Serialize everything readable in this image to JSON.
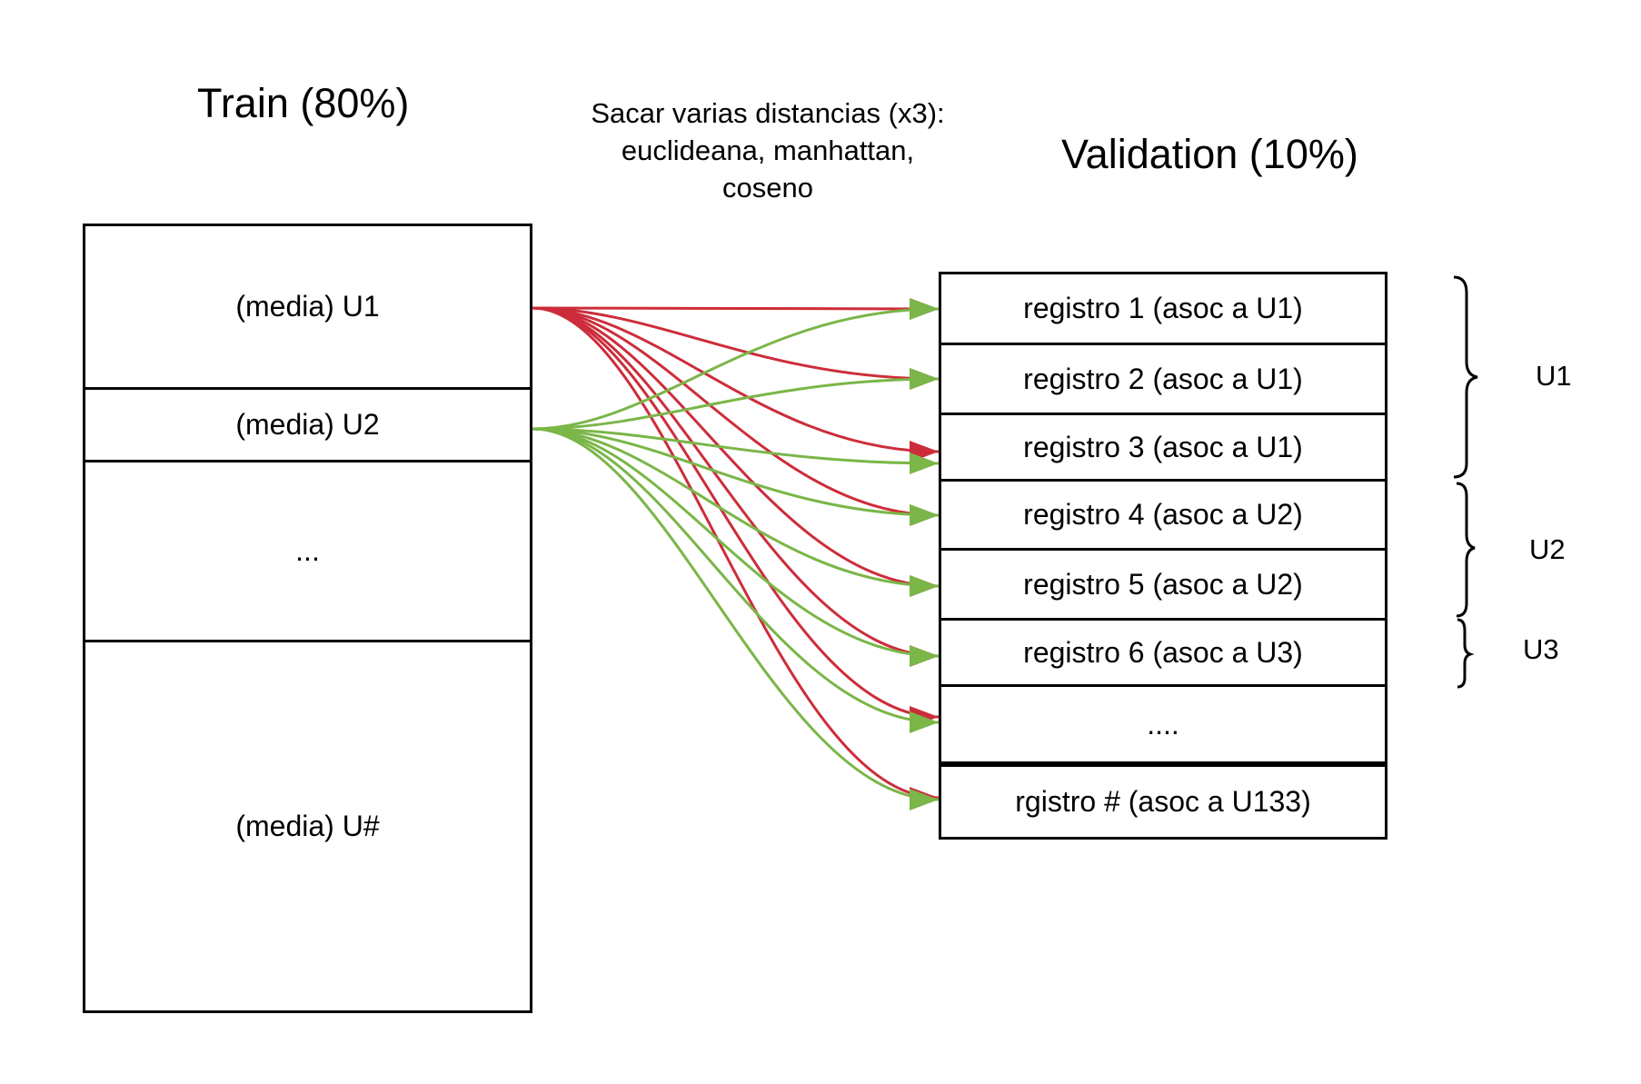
{
  "train": {
    "title": "Train (80%)",
    "rows": [
      "(media) U1",
      "(media) U2",
      "...",
      "(media) U#"
    ]
  },
  "validation": {
    "title": "Validation (10%)",
    "rows": [
      "registro 1  (asoc a U1)",
      "registro 2 (asoc a U1)",
      "registro 3 (asoc a U1)",
      "registro 4 (asoc a U2)",
      "registro 5 (asoc a U2)",
      "registro 6 (asoc a U3)",
      "....",
      "rgistro # (asoc a U133)"
    ]
  },
  "note": {
    "line1": "Sacar varias distancias (x3):",
    "line2": "euclideana, manhattan,",
    "line3": "coseno"
  },
  "groups": {
    "u1": "U1",
    "u2": "U2",
    "u3": "U3"
  },
  "colors": {
    "red_links": "#cc2d3a",
    "green_links": "#7ab648"
  }
}
